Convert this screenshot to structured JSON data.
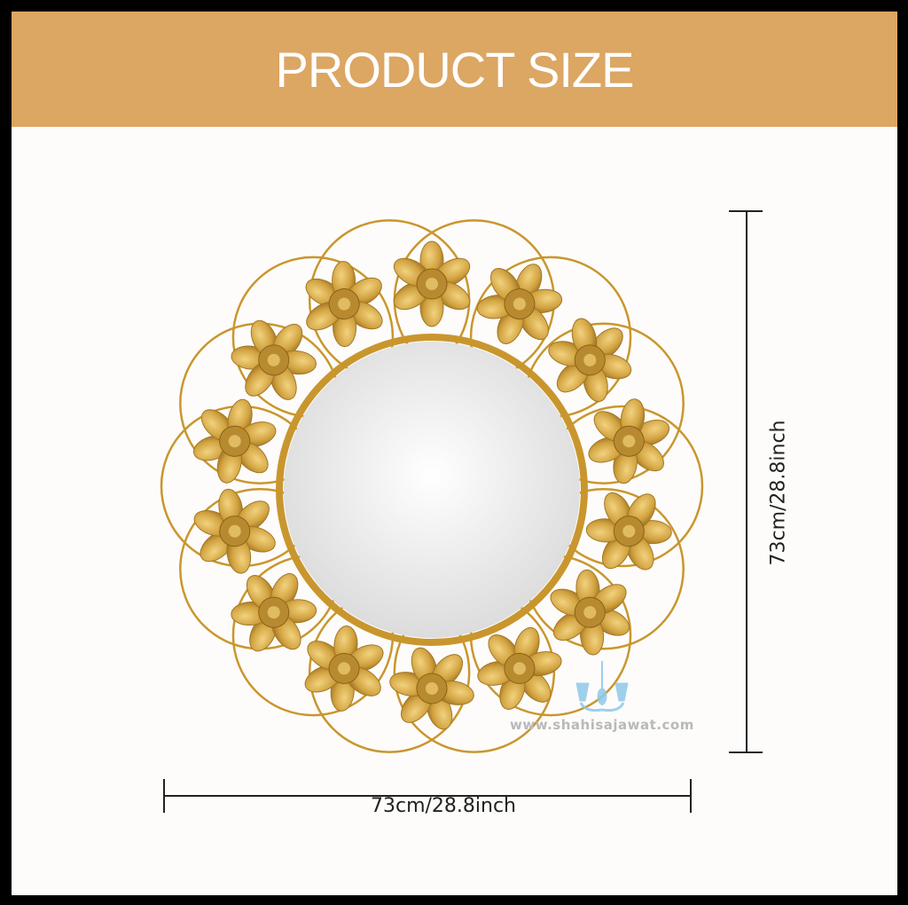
{
  "header": {
    "title": "PRODUCT SIZE",
    "color": "#dca663"
  },
  "dimensions": {
    "width_label": "73cm/28.8inch",
    "height_label": "73cm/28.8inch"
  },
  "product": {
    "name_icon": "gold-flower-round-mirror",
    "flower_count": 14,
    "frame_color": "#c9962e"
  },
  "watermark": {
    "text": "www.shahisajawat.com",
    "logo_icon": "chandelier-icon",
    "logo_color": "#8ec9ea"
  }
}
